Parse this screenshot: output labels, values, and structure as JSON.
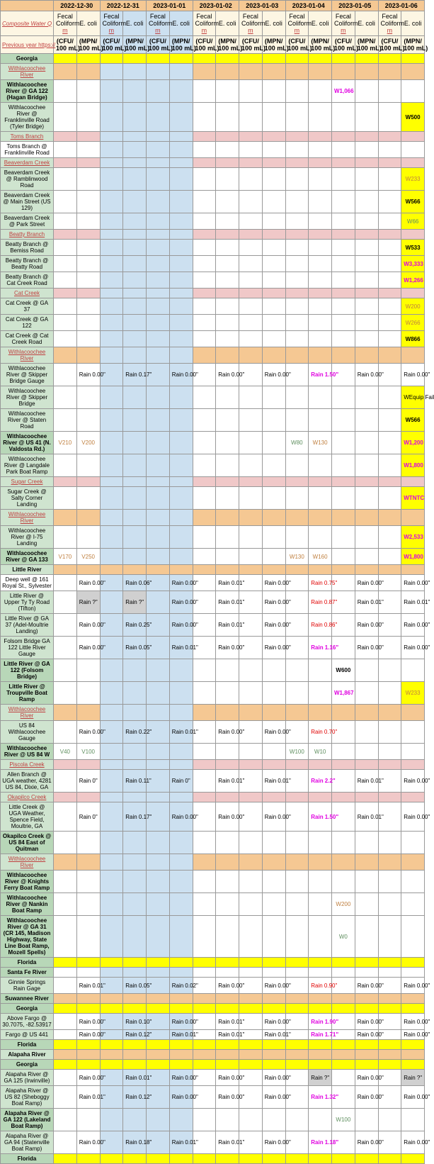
{
  "dates": [
    "2022-12-30",
    "2022-12-31",
    "2023-01-01",
    "2023-01-02",
    "2023-01-03",
    "2023-01-04",
    "2023-01-05",
    "2023-01-06"
  ],
  "subh": {
    "fc": "Fecal Coliform",
    "ec": "E. coli",
    "unit_fc": "(CFU/ 100 mL)",
    "unit_ec": "(MPN/ 100 mL)"
  },
  "title_link": "Composite Water Q",
  "prev_link": "Previous year https://",
  "rows": [
    {
      "t": "yellow-sec",
      "label": "Georgia"
    },
    {
      "t": "orange-row",
      "label": "Withlacoochee River"
    },
    {
      "t": "green",
      "label": "Withlacoochee River @ GA 122 (Hagan Bridge)",
      "cells": {
        "12": {
          "v": "W1,066",
          "c": "txt-magenta"
        }
      }
    },
    {
      "t": "green-alt",
      "label": "Withlacoochee River @ Franklinville Road (Tyler Bridge)",
      "cells": {
        "15": {
          "v": "W500",
          "c": "bold",
          "bg": "yellow"
        }
      }
    },
    {
      "t": "pink-row",
      "label": "Toms Branch"
    },
    {
      "t": "plain",
      "label": "Toms Branch @ Franklinville Road"
    },
    {
      "t": "pink-row",
      "label": "Beaverdam Creek"
    },
    {
      "t": "green-alt",
      "label": "Beaverdam Creek @ Ramblinwood Road",
      "cells": {
        "15": {
          "v": "W233",
          "c": "txt-brown",
          "bg": "yellow"
        }
      }
    },
    {
      "t": "green-alt",
      "label": "Beaverdam Creek @ Main Street (US 129)",
      "cells": {
        "15": {
          "v": "W566",
          "c": "bold",
          "bg": "yellow"
        }
      }
    },
    {
      "t": "green-alt",
      "label": "Beaverdam Creek @ Park Street",
      "cells": {
        "15": {
          "v": "W66",
          "c": "txt-green",
          "bg": "yellow"
        }
      }
    },
    {
      "t": "pink-row",
      "label": "Beatty Branch"
    },
    {
      "t": "green-alt",
      "label": "Beatty Branch @ Bemiss Road",
      "cells": {
        "15": {
          "v": "W533",
          "c": "bold",
          "bg": "yellow"
        }
      }
    },
    {
      "t": "green-alt",
      "label": "Beatty Branch @ Beatty Road",
      "cells": {
        "15": {
          "v": "W3,333",
          "c": "txt-magenta",
          "bg": "yellow"
        }
      }
    },
    {
      "t": "green-alt",
      "label": "Beatty Branch @ Cat Creek Road",
      "cells": {
        "15": {
          "v": "W1,266",
          "c": "txt-magenta",
          "bg": "yellow"
        }
      }
    },
    {
      "t": "pink-row",
      "label": "Cat Creek"
    },
    {
      "t": "green-alt",
      "label": "Cat Creek @ GA 37",
      "cells": {
        "15": {
          "v": "W200",
          "c": "txt-brown",
          "bg": "yellow"
        }
      }
    },
    {
      "t": "green-alt",
      "label": "Cat Creek @ GA 122",
      "cells": {
        "15": {
          "v": "W266",
          "c": "txt-brown",
          "bg": "yellow"
        }
      }
    },
    {
      "t": "green-alt",
      "label": "Cat Creek @ Cat Creek Road",
      "cells": {
        "15": {
          "v": "W866",
          "c": "bold",
          "bg": "yellow"
        }
      }
    },
    {
      "t": "orange-row",
      "label": "Withlacoochee River"
    },
    {
      "t": "green-alt",
      "label": "Withlacoochee River @ Skipper Bridge Gauge",
      "rain": {
        "1": "Rain 0.00\"",
        "3": "Rain 0.17\"",
        "5": "Rain 0.00\"",
        "7": "Rain 0.00\"",
        "9": "Rain 0.00\"",
        "11": {
          "v": "Rain 1.50\"",
          "c": "txt-magenta"
        },
        "13": "Rain 0.00\"",
        "15": "Rain 0.00\""
      }
    },
    {
      "t": "green-alt",
      "label": "Withlacoochee River @ Skipper Bridge",
      "cells": {
        "15": {
          "v": "WEquip Fail",
          "bg": "yellow"
        }
      }
    },
    {
      "t": "green-alt",
      "label": "Withlacoochee River @ Staten Road",
      "cells": {
        "15": {
          "v": "W566",
          "c": "bold",
          "bg": "yellow"
        }
      }
    },
    {
      "t": "green",
      "label": "Withlacoochee River @ US 41 (N. Valdosta Rd.)",
      "cells": {
        "0": {
          "v": "V210",
          "c": "txt-brown"
        },
        "1": {
          "v": "V200",
          "c": "txt-brown"
        },
        "10": {
          "v": "W80",
          "c": "txt-green"
        },
        "11": {
          "v": "W130",
          "c": "txt-brown"
        },
        "15": {
          "v": "W1,200",
          "c": "txt-magenta",
          "bg": "yellow"
        }
      }
    },
    {
      "t": "green-alt",
      "label": "Withlacoochee River @ Langdale Park Boat Ramp",
      "cells": {
        "15": {
          "v": "W1,800",
          "c": "txt-magenta",
          "bg": "yellow"
        }
      }
    },
    {
      "t": "pink-row",
      "label": "Sugar Creek"
    },
    {
      "t": "green-alt",
      "label": "Sugar Creek @ Salty Corner Landing",
      "cells": {
        "15": {
          "v": "WTNTC",
          "c": "txt-magenta",
          "bg": "yellow"
        }
      }
    },
    {
      "t": "orange-row",
      "label": "Withlacoochee River"
    },
    {
      "t": "green-alt",
      "label": "Withlacoochee River @ I-75 Landing",
      "cells": {
        "15": {
          "v": "W2,533",
          "c": "txt-magenta",
          "bg": "yellow"
        }
      }
    },
    {
      "t": "green",
      "label": "Withlacoochee River @ GA 133",
      "cells": {
        "0": {
          "v": "V170",
          "c": "txt-brown"
        },
        "1": {
          "v": "V250",
          "c": "txt-brown"
        },
        "10": {
          "v": "W130",
          "c": "txt-brown"
        },
        "11": {
          "v": "W160",
          "c": "txt-brown"
        },
        "15": {
          "v": "W1,800",
          "c": "txt-magenta",
          "bg": "yellow"
        }
      }
    },
    {
      "t": "green-sec",
      "label": "Little River"
    },
    {
      "t": "plain",
      "label": "Deep well @ 161 Royal St., Sylvester",
      "rain": {
        "1": "Rain 0.00\"",
        "3": "Rain 0.06\"",
        "5": "Rain 0.00\"",
        "7": "Rain 0.01\"",
        "9": "Rain 0.00\"",
        "11": {
          "v": "Rain 0.75\"",
          "c": "txt-red"
        },
        "13": "Rain 0.00\"",
        "15": "Rain 0.00\""
      }
    },
    {
      "t": "green-alt",
      "label": "Little River @ Upper Ty Ty Road (Tifton)",
      "rain": {
        "1": {
          "v": "Rain ?\"",
          "bg": "gray-bg"
        },
        "3": {
          "v": "Rain ?\"",
          "bg": "gray-bg"
        },
        "5": "Rain 0.00\"",
        "7": "Rain 0.01\"",
        "9": "Rain 0.00\"",
        "11": {
          "v": "Rain 0.87\"",
          "c": "txt-red"
        },
        "13": "Rain 0.01\"",
        "15": "Rain 0.01\""
      }
    },
    {
      "t": "green-alt",
      "label": "Little River @ GA 37 (Adel-Moultrie Landing)",
      "rain": {
        "1": "Rain 0.00\"",
        "3": "Rain 0.25\"",
        "5": "Rain 0.00\"",
        "7": "Rain 0.01\"",
        "9": "Rain 0.00\"",
        "11": {
          "v": "Rain 0.86\"",
          "c": "txt-red"
        },
        "13": "Rain 0.00\"",
        "15": "Rain 0.00\""
      }
    },
    {
      "t": "green-alt",
      "label": "Folsom Bridge GA 122 Little River Gauge",
      "rain": {
        "1": "Rain 0.00\"",
        "3": "Rain 0.05\"",
        "5": "Rain 0.01\"",
        "7": "Rain 0.00\"",
        "9": "Rain 0.00\"",
        "11": {
          "v": "Rain 1.16\"",
          "c": "txt-magenta"
        },
        "13": "Rain 0.00\"",
        "15": "Rain 0.00\""
      }
    },
    {
      "t": "green",
      "label": "Little River @ GA 122 (Folsom Bridge)",
      "cells": {
        "12": {
          "v": "W600",
          "c": "bold"
        }
      }
    },
    {
      "t": "green",
      "label": "Little River @ Troupville Boat Ramp",
      "cells": {
        "12": {
          "v": "W1,867",
          "c": "txt-magenta"
        },
        "15": {
          "v": "W233",
          "c": "txt-brown",
          "bg": "yellow"
        }
      }
    },
    {
      "t": "orange-row",
      "label": "Withlacoochee River"
    },
    {
      "t": "green-alt",
      "label": "US 84 Withlacoochee Gauge",
      "rain": {
        "1": "Rain 0.00\"",
        "3": "Rain 0.22\"",
        "5": "Rain 0.01\"",
        "7": "Rain 0.00\"",
        "9": "Rain 0.00\"",
        "11": {
          "v": "Rain 0.70\"",
          "c": "txt-red"
        }
      }
    },
    {
      "t": "green",
      "label": "Withlacoochee River @ US 84 W",
      "cells": {
        "0": {
          "v": "V40",
          "c": "txt-green"
        },
        "1": {
          "v": "V100",
          "c": "txt-green"
        },
        "10": {
          "v": "W100",
          "c": "txt-green"
        },
        "11": {
          "v": "W10",
          "c": "txt-green"
        }
      }
    },
    {
      "t": "pink-row",
      "label": "Piscola Creek"
    },
    {
      "t": "green-alt",
      "label": "Allen  Branch @ UGA weather, 4281 US 84, Dixie, GA",
      "rain": {
        "1": "Rain 0\"",
        "3": "Rain 0.11\"",
        "5": "Rain 0\"",
        "7": "Rain 0.01\"",
        "9": "Rain 0.01\"",
        "11": {
          "v": "Rain 2.2\"",
          "c": "txt-magenta"
        },
        "13": "Rain 0.01\"",
        "15": "Rain 0.00\""
      }
    },
    {
      "t": "pink-row",
      "label": "Okapilco Creek"
    },
    {
      "t": "green-alt",
      "label": "Little Creek @ UGA Weather, Spence Field, Moultrie, GA",
      "rain": {
        "1": "Rain 0\"",
        "3": "Rain 0.17\"",
        "5": "Rain 0.00\"",
        "7": "Rain 0.00\"",
        "9": "Rain 0.00\"",
        "11": {
          "v": "Rain 1.50\"",
          "c": "txt-magenta"
        },
        "13": "Rain 0.01\"",
        "15": "Rain 0.00\""
      }
    },
    {
      "t": "green",
      "label": "Okapilco Creek @ US 84 East of Quitman"
    },
    {
      "t": "orange-row",
      "label": "Withlacoochee River"
    },
    {
      "t": "green",
      "label": "Withlacoochee River @ Knights Ferry Boat Ramp"
    },
    {
      "t": "green",
      "label": "Withlacoochee River @ Nankin Boat Ramp",
      "cells": {
        "12": {
          "v": "W200",
          "c": "txt-brown"
        }
      }
    },
    {
      "t": "green",
      "label": "Withlacoochee River @ GA 31 (CR 145, Madison Highway, State Line Boat Ramp, Mozell Spells)",
      "cells": {
        "12": {
          "v": "W0",
          "c": "txt-green"
        }
      }
    },
    {
      "t": "yellow-sec",
      "label": "Florida"
    },
    {
      "t": "green",
      "label": "Santa Fe River"
    },
    {
      "t": "green-alt",
      "label": "Ginnie Springs Rain Gage",
      "rain": {
        "1": "Rain 0.01\"",
        "3": "Rain 0.05\"",
        "5": "Rain 0.02\"",
        "7": "Rain 0.00\"",
        "9": "Rain 0.00\"",
        "11": {
          "v": "Rain 0.90\"",
          "c": "txt-red"
        },
        "13": "Rain 0.00\"",
        "15": "Rain 0.00\""
      }
    },
    {
      "t": "green-orange",
      "label": "Suwannee River"
    },
    {
      "t": "yellow-sec",
      "label": "Georgia"
    },
    {
      "t": "green-alt",
      "label": "Above Fargo @ 30.7075, -82.53917",
      "rain": {
        "1": "Rain 0.00\"",
        "3": "Rain 0.10\"",
        "5": "Rain 0.00\"",
        "7": "Rain 0.01\"",
        "9": "Rain 0.00\"",
        "11": {
          "v": "Rain 1.90\"",
          "c": "txt-magenta"
        },
        "13": "Rain 0.00\"",
        "15": "Rain 0.00\""
      }
    },
    {
      "t": "green-alt",
      "label": "Fargo @ US 441",
      "rain": {
        "1": "Rain 0.00\"",
        "3": "Rain 0.12\"",
        "5": "Rain 0.01\"",
        "7": "Rain 0.01\"",
        "9": "Rain 0.01\"",
        "11": {
          "v": "Rain 1.71\"",
          "c": "txt-magenta"
        },
        "13": "Rain 0.00\"",
        "15": "Rain 0.00\""
      }
    },
    {
      "t": "yellow-sec",
      "label": "Florida"
    },
    {
      "t": "green-sec",
      "label": "Alapaha River"
    },
    {
      "t": "yellow-sec",
      "label": "Georgia"
    },
    {
      "t": "green-alt",
      "label": "Alapaha River @ GA 125 (Irwinville)",
      "rain": {
        "1": "Rain 0.00\"",
        "3": "Rain 0.01\"",
        "5": "Rain 0.00\"",
        "7": "Rain 0.00\"",
        "9": "Rain 0.00\"",
        "11": {
          "v": "Rain ?\"",
          "bg": "gray-bg"
        },
        "13": "Rain 0.00\"",
        "15": {
          "v": "Rain ?\"",
          "bg": "gray-bg"
        }
      }
    },
    {
      "t": "green-alt",
      "label": "Alapaha River @ US 82 (Sheboggy Boat Ramp)",
      "rain": {
        "1": "Rain 0.01\"",
        "3": "Rain 0.12\"",
        "5": "Rain 0.00\"",
        "7": "Rain 0.00\"",
        "9": "Rain 0.00\"",
        "11": {
          "v": "Rain 1.32\"",
          "c": "txt-magenta"
        },
        "13": "Rain 0.00\"",
        "15": "Rain 0.00\""
      }
    },
    {
      "t": "green",
      "label": "Alapaha River @ GA 122 (Lakeland Boat Ramp)",
      "cells": {
        "12": {
          "v": "W100",
          "c": "txt-green"
        }
      }
    },
    {
      "t": "green-alt",
      "label": "Alapaha River @ GA 94 (Statenville Boat Ramp)",
      "rain": {
        "1": "Rain 0.00\"",
        "3": "Rain 0.18\"",
        "5": "Rain 0.01\"",
        "7": "Rain 0.01\"",
        "9": "Rain 0.00\"",
        "11": {
          "v": "Rain 1.18\"",
          "c": "txt-magenta"
        },
        "13": "Rain 0.00\"",
        "15": "Rain 0.00\""
      }
    },
    {
      "t": "yellow-sec",
      "label": "Florida"
    }
  ]
}
